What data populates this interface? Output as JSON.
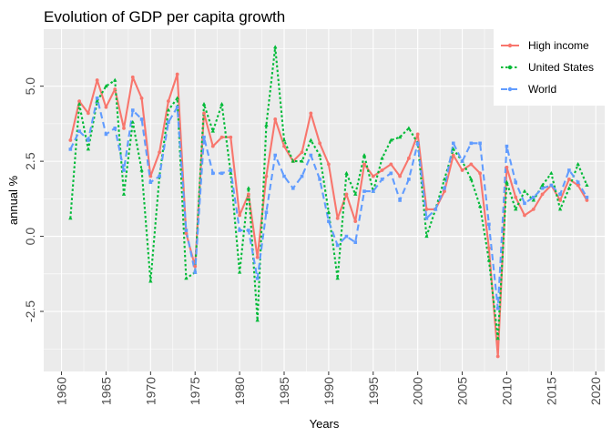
{
  "chart_data": {
    "type": "line",
    "title": "Evolution of GDP per capita growth",
    "xlabel": "Years",
    "ylabel": "annual %",
    "xlim": [
      1958,
      2021
    ],
    "ylim": [
      -4.5,
      6.9
    ],
    "xticks": [
      1960,
      1965,
      1970,
      1975,
      1980,
      1985,
      1990,
      1995,
      2000,
      2005,
      2010,
      2015,
      2020
    ],
    "xtick_labels": [
      "1960",
      "1965",
      "1970",
      "1975",
      "1980",
      "1985",
      "1990",
      "1995",
      "2000",
      "2005",
      "2010",
      "2015",
      "2020"
    ],
    "yticks": [
      -2.5,
      0,
      2.5,
      5
    ],
    "ytick_labels": [
      "-2.5",
      "0.0",
      "2.5",
      "5.0"
    ],
    "grid": true,
    "legend_position": "top-right",
    "x": [
      1961,
      1962,
      1963,
      1964,
      1965,
      1966,
      1967,
      1968,
      1969,
      1970,
      1971,
      1972,
      1973,
      1974,
      1975,
      1976,
      1977,
      1978,
      1979,
      1980,
      1981,
      1982,
      1983,
      1984,
      1985,
      1986,
      1987,
      1988,
      1989,
      1990,
      1991,
      1992,
      1993,
      1994,
      1995,
      1996,
      1997,
      1998,
      1999,
      2000,
      2001,
      2002,
      2003,
      2004,
      2005,
      2006,
      2007,
      2008,
      2009,
      2010,
      2011,
      2012,
      2013,
      2014,
      2015,
      2016,
      2017,
      2018,
      2019
    ],
    "series": [
      {
        "name": "High income",
        "color": "#F8766D",
        "dash": "solid",
        "values": [
          3.2,
          4.5,
          4.1,
          5.2,
          4.3,
          4.9,
          3.6,
          5.3,
          4.6,
          2.0,
          2.8,
          4.5,
          5.4,
          0.1,
          -1.0,
          4.1,
          3.0,
          3.3,
          3.3,
          0.7,
          1.4,
          -0.7,
          2.0,
          3.9,
          3.0,
          2.5,
          2.8,
          4.1,
          3.1,
          2.4,
          0.6,
          1.4,
          0.5,
          2.4,
          2.0,
          2.2,
          2.4,
          2.0,
          2.6,
          3.4,
          0.9,
          0.9,
          1.5,
          2.7,
          2.2,
          2.4,
          2.1,
          -0.4,
          -4.0,
          2.3,
          1.3,
          0.7,
          0.9,
          1.4,
          1.7,
          1.2,
          1.9,
          1.7,
          1.2
        ]
      },
      {
        "name": "United States",
        "color": "#00BA38",
        "dash": "dotted",
        "values": [
          0.6,
          4.4,
          2.9,
          4.5,
          5.0,
          5.2,
          1.4,
          3.8,
          2.2,
          -1.5,
          2.0,
          4.2,
          4.6,
          -1.4,
          -1.2,
          4.4,
          3.5,
          4.4,
          2.1,
          -1.2,
          1.6,
          -2.8,
          3.7,
          6.3,
          3.2,
          2.5,
          2.5,
          3.2,
          2.7,
          0.8,
          -1.4,
          2.1,
          1.4,
          2.7,
          1.5,
          2.6,
          3.2,
          3.3,
          3.6,
          3.1,
          0.0,
          0.9,
          1.9,
          2.9,
          2.5,
          1.9,
          1.0,
          -0.8,
          -3.4,
          1.8,
          0.9,
          1.5,
          1.2,
          1.7,
          2.1,
          0.9,
          1.6,
          2.4,
          1.7
        ]
      },
      {
        "name": "World",
        "color": "#619CFF",
        "dash": "dashed",
        "values": [
          2.9,
          3.5,
          3.2,
          4.6,
          3.4,
          3.6,
          2.2,
          4.2,
          3.9,
          1.8,
          2.0,
          3.8,
          4.3,
          0.2,
          -1.2,
          3.3,
          2.1,
          2.1,
          2.2,
          0.2,
          0.2,
          -1.4,
          0.8,
          2.7,
          2.0,
          1.6,
          2.0,
          2.7,
          1.9,
          0.5,
          -0.3,
          0.0,
          -0.2,
          1.5,
          1.5,
          1.9,
          2.1,
          1.2,
          1.9,
          3.1,
          0.6,
          0.9,
          1.6,
          3.1,
          2.5,
          3.1,
          3.1,
          0.4,
          -2.4,
          3.0,
          1.8,
          1.1,
          1.3,
          1.6,
          1.7,
          1.4,
          2.2,
          1.8,
          1.3
        ]
      }
    ]
  }
}
